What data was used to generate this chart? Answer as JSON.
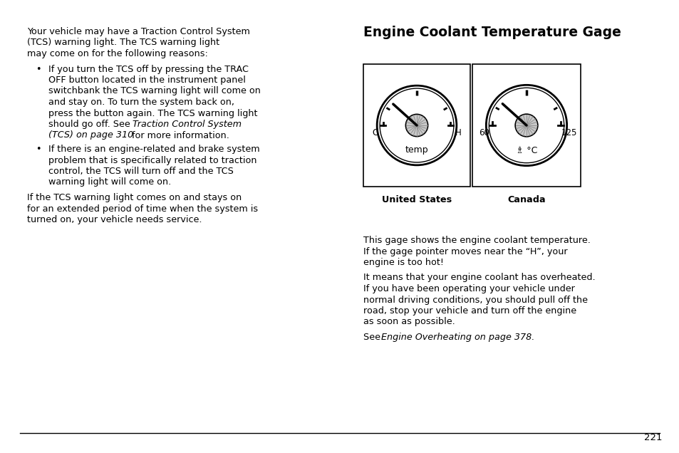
{
  "bg_color": "#ffffff",
  "text_color": "#000000",
  "title": "Engine Coolant Temperature Gage",
  "page_number": "221",
  "left_para1": [
    "Your vehicle may have a Traction Control System",
    "(TCS) warning light. The TCS warning light",
    "may come on for the following reasons:"
  ],
  "bullet1_lines": [
    "If you turn the TCS off by pressing the TRAC",
    "OFF button located in the instrument panel",
    "switchbank the TCS warning light will come on",
    "and stay on. To turn the system back on,",
    "press the button again. The TCS warning light",
    "should go off. See "
  ],
  "bullet1_italic": "Traction Control System",
  "bullet1_line2_italic": "(TCS) on page 310",
  "bullet1_line2_normal": " for more information.",
  "bullet2_lines": [
    "If there is an engine-related and brake system",
    "problem that is specifically related to traction",
    "control, the TCS will turn off and the TCS",
    "warning light will come on."
  ],
  "para3_lines": [
    "If the TCS warning light comes on and stays on",
    "for an extended period of time when the system is",
    "turned on, your vehicle needs service."
  ],
  "right_below": [
    "This gage shows the engine coolant temperature.",
    "If the gage pointer moves near the “H”, your",
    "engine is too hot!"
  ],
  "right_para2": [
    "It means that your engine coolant has overheated.",
    "If you have been operating your vehicle under",
    "normal driving conditions, you should pull off the",
    "road, stop your vehicle and turn off the engine",
    "as soon as possible."
  ],
  "see_normal": "See ",
  "see_italic": "Engine Overheating on page 378.",
  "us_label": "United States",
  "canada_label": "Canada",
  "gage_us_left": "C",
  "gage_us_right": "H",
  "gage_us_bottom": "temp",
  "gage_ca_left": "60",
  "gage_ca_right": "125",
  "gage_ca_bottom": "℃",
  "font_size": 9.2,
  "title_font_size": 13.5
}
